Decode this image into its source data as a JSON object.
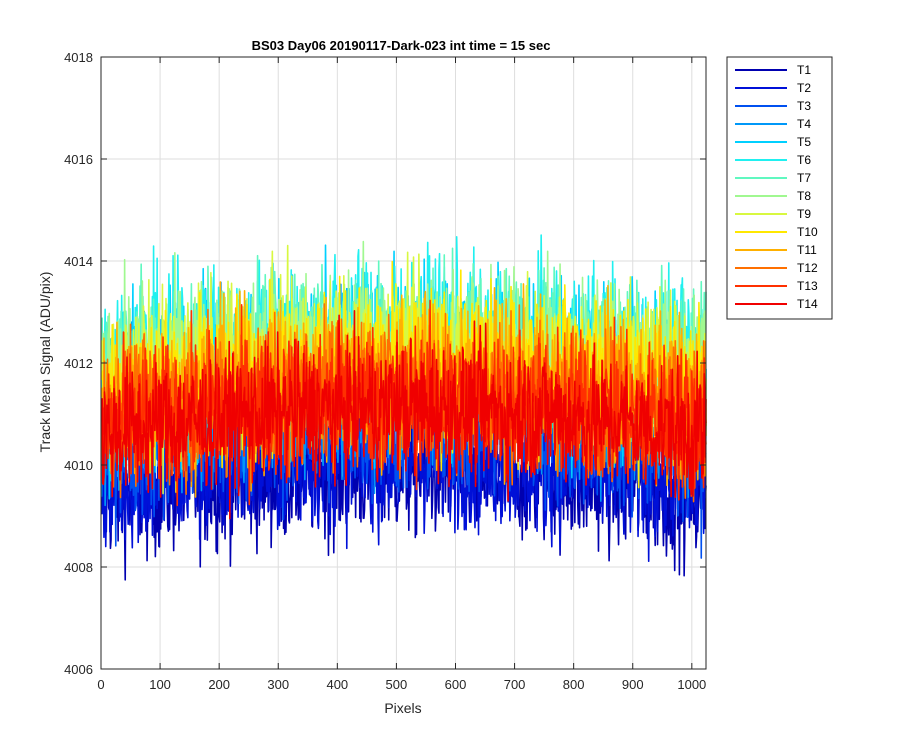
{
  "chart_data": {
    "type": "line",
    "title": "BS03 Day06 20190117-Dark-023 int time = 15 sec",
    "xlabel": "Pixels",
    "ylabel": "Track Mean Signal (ADU/pix)",
    "xlim": [
      0,
      1024
    ],
    "ylim": [
      4006,
      4018
    ],
    "xticks": [
      0,
      100,
      200,
      300,
      400,
      500,
      600,
      700,
      800,
      900,
      1000
    ],
    "yticks": [
      4006,
      4008,
      4010,
      4012,
      4014,
      4016,
      4018
    ],
    "grid": true,
    "legend_position": "outside-right",
    "n_points": 1024,
    "series": [
      {
        "name": "T1",
        "color": "#0000b0",
        "mean": 4009.4,
        "noise": 1.1
      },
      {
        "name": "T2",
        "color": "#0010d8",
        "mean": 4009.6,
        "noise": 1.1
      },
      {
        "name": "T3",
        "color": "#0050f0",
        "mean": 4010.3,
        "noise": 1.2
      },
      {
        "name": "T4",
        "color": "#0098f8",
        "mean": 4011.0,
        "noise": 1.3
      },
      {
        "name": "T5",
        "color": "#00d0ff",
        "mean": 4011.6,
        "noise": 1.4
      },
      {
        "name": "T6",
        "color": "#20f0f0",
        "mean": 4011.9,
        "noise": 1.4
      },
      {
        "name": "T7",
        "color": "#60f8c0",
        "mean": 4011.9,
        "noise": 1.3
      },
      {
        "name": "T8",
        "color": "#a0f890",
        "mean": 4011.8,
        "noise": 1.3
      },
      {
        "name": "T9",
        "color": "#d8f840",
        "mean": 4011.6,
        "noise": 1.3
      },
      {
        "name": "T10",
        "color": "#ffe800",
        "mean": 4011.4,
        "noise": 1.3
      },
      {
        "name": "T11",
        "color": "#ffb000",
        "mean": 4011.2,
        "noise": 1.3
      },
      {
        "name": "T12",
        "color": "#ff7000",
        "mean": 4011.0,
        "noise": 1.2
      },
      {
        "name": "T13",
        "color": "#ff3000",
        "mean": 4010.8,
        "noise": 1.2
      },
      {
        "name": "T14",
        "color": "#f00000",
        "mean": 4010.6,
        "noise": 1.1
      }
    ]
  }
}
